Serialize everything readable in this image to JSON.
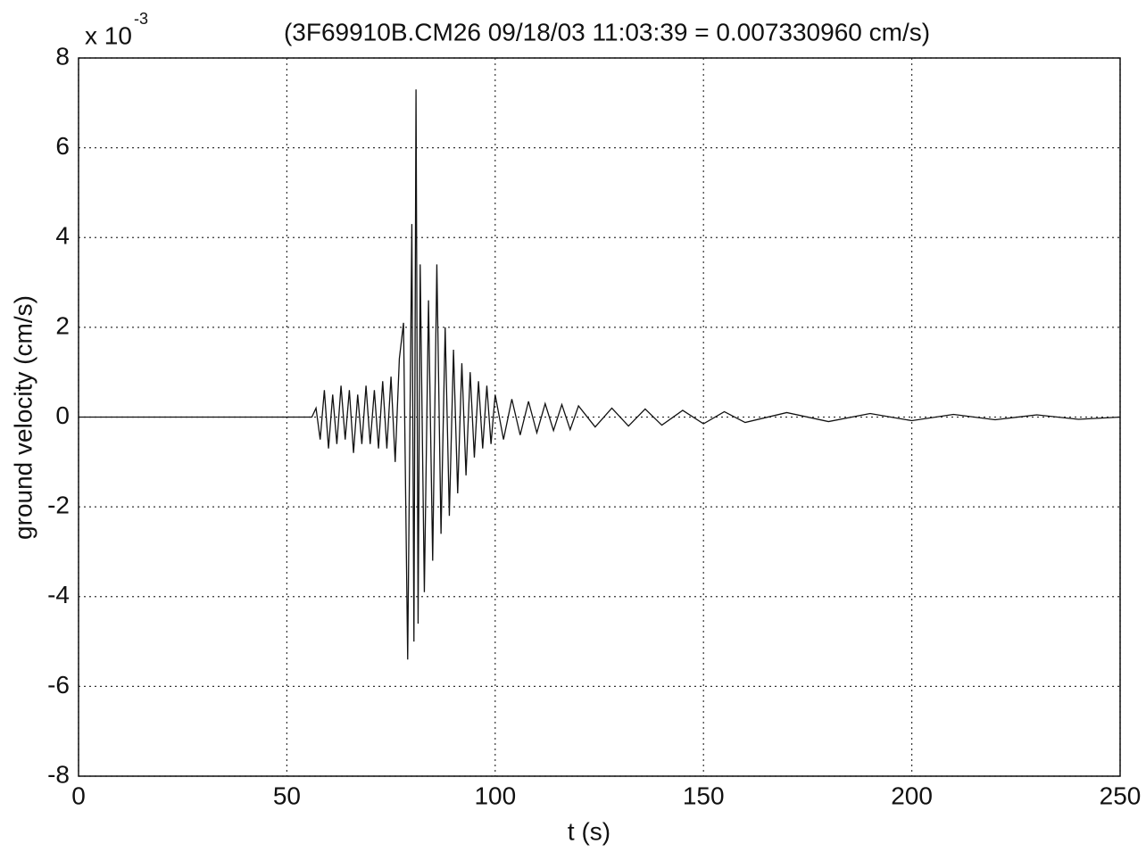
{
  "chart_data": {
    "type": "line",
    "title": "(3F69910B.CM26  09/18/03 11:03:39 = 0.007330960 cm/s)",
    "x_label": "t (s)",
    "y_label": "ground velocity (cm/s)",
    "y_multiplier": "x 10",
    "y_exponent": "-3",
    "xlim": [
      0,
      250
    ],
    "xticks": [
      0,
      50,
      100,
      150,
      200,
      250
    ],
    "ylim": [
      -8,
      8
    ],
    "yticks": [
      -8,
      -6,
      -4,
      -2,
      0,
      2,
      4,
      6,
      8
    ],
    "grid": true,
    "series": [
      {
        "color": "#111111",
        "x": [
          0,
          56,
          57,
          58,
          59,
          60,
          61,
          62,
          63,
          64,
          65,
          66,
          67,
          68,
          69,
          70,
          71,
          72,
          73,
          74,
          75,
          76,
          77,
          78,
          79,
          80,
          80.5,
          81,
          81.5,
          82,
          83,
          84,
          85,
          86,
          87,
          88,
          89,
          90,
          91,
          92,
          93,
          94,
          95,
          96,
          97,
          98,
          99,
          100,
          102,
          104,
          106,
          108,
          110,
          112,
          114,
          116,
          118,
          120,
          124,
          128,
          132,
          136,
          140,
          145,
          150,
          155,
          160,
          170,
          180,
          190,
          200,
          210,
          220,
          230,
          240,
          250
        ],
        "values": [
          0,
          0,
          0.2,
          -0.5,
          0.6,
          -0.7,
          0.5,
          -0.6,
          0.7,
          -0.5,
          0.6,
          -0.8,
          0.5,
          -0.6,
          0.7,
          -0.6,
          0.6,
          -0.7,
          0.8,
          -0.7,
          0.9,
          -1.0,
          1.3,
          2.1,
          -5.4,
          4.3,
          -5.0,
          7.3,
          -4.6,
          3.4,
          -3.9,
          2.6,
          -3.2,
          3.4,
          -2.6,
          2.0,
          -2.2,
          1.5,
          -1.7,
          1.2,
          -1.3,
          1.0,
          -0.9,
          0.8,
          -0.7,
          0.7,
          -0.6,
          0.5,
          -0.5,
          0.4,
          -0.4,
          0.35,
          -0.35,
          0.3,
          -0.3,
          0.28,
          -0.28,
          0.25,
          -0.22,
          0.2,
          -0.2,
          0.18,
          -0.18,
          0.15,
          -0.15,
          0.12,
          -0.12,
          0.1,
          -0.1,
          0.08,
          -0.08,
          0.06,
          -0.06,
          0.05,
          -0.05,
          0
        ]
      }
    ]
  }
}
